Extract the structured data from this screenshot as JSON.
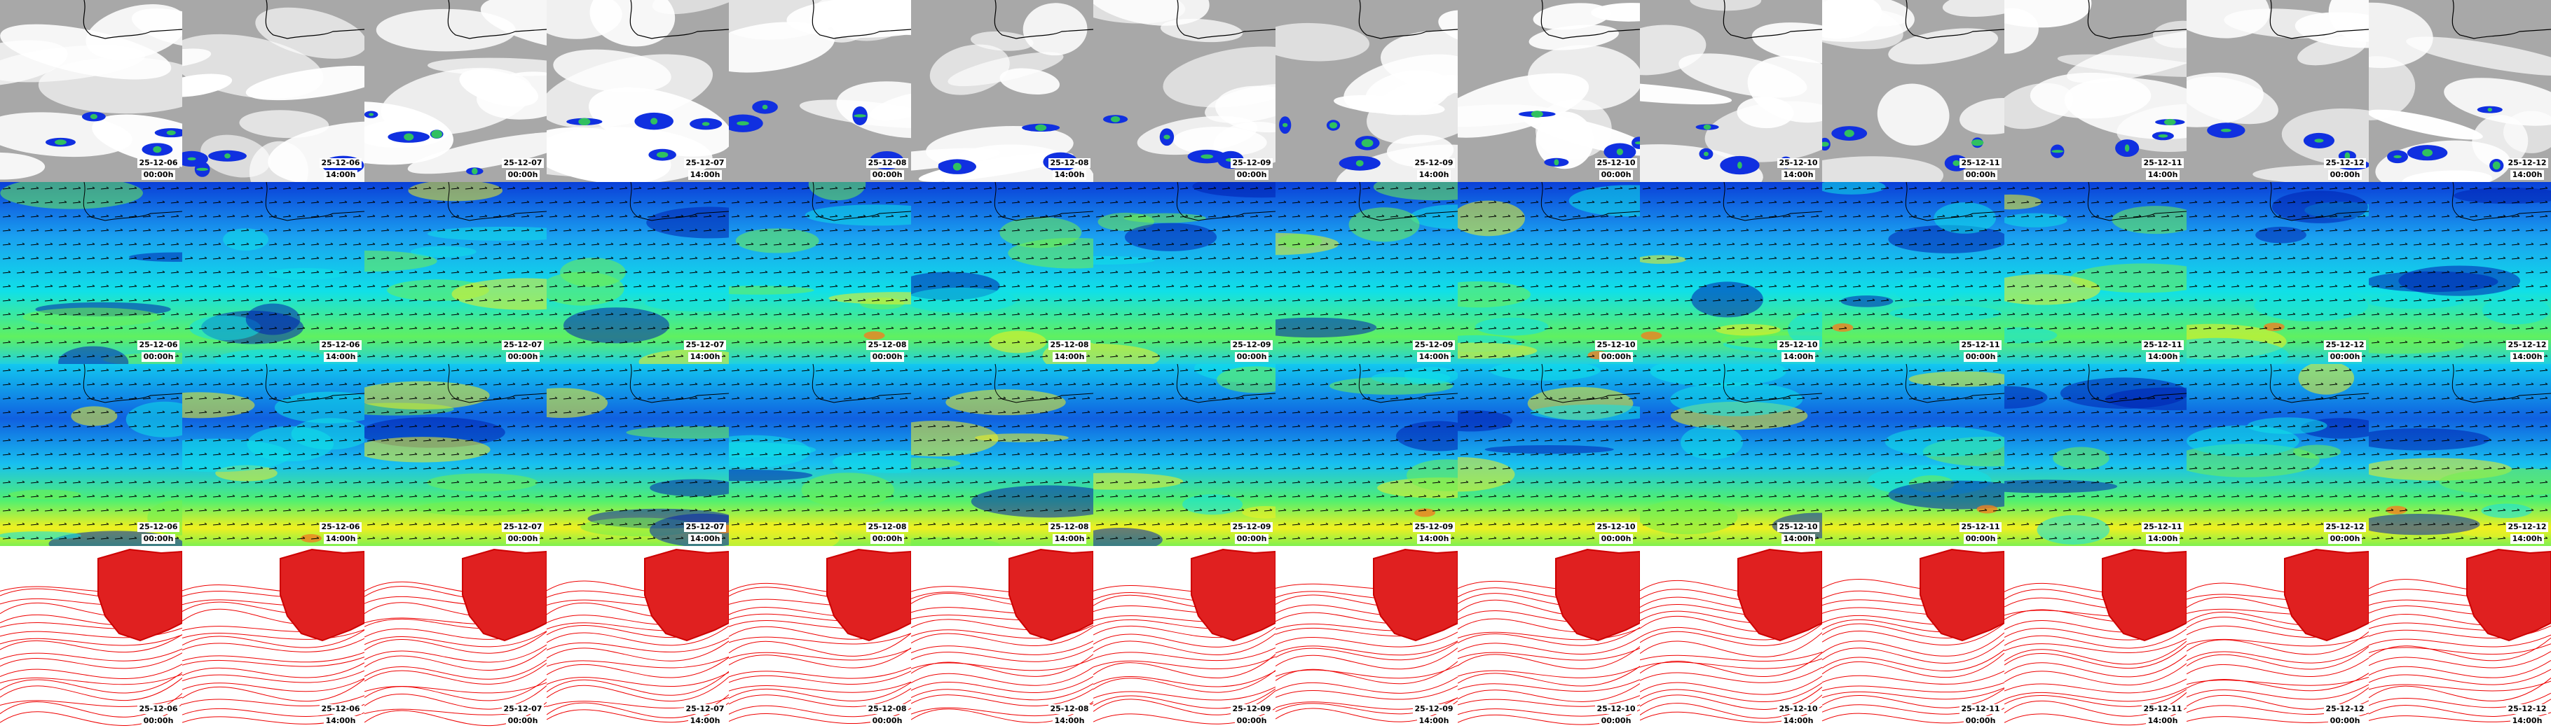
{
  "rows": [
    {
      "tiles": [
        {
          "date": "25-12-06",
          "time": "00:00h"
        },
        {
          "date": "25-12-06",
          "time": "14:00h"
        },
        {
          "date": "25-12-07",
          "time": "00:00h"
        },
        {
          "date": "25-12-07",
          "time": "14:00h"
        },
        {
          "date": "25-12-08",
          "time": "00:00h"
        },
        {
          "date": "25-12-08",
          "time": "14:00h"
        },
        {
          "date": "25-12-09",
          "time": "00:00h"
        },
        {
          "date": "25-12-09",
          "time": "14:00h"
        },
        {
          "date": "25-12-10",
          "time": "00:00h"
        },
        {
          "date": "25-12-10",
          "time": "14:00h"
        },
        {
          "date": "25-12-11",
          "time": "00:00h"
        },
        {
          "date": "25-12-11",
          "time": "14:00h"
        },
        {
          "date": "25-12-12",
          "time": "00:00h"
        },
        {
          "date": "25-12-12",
          "time": "14:00h"
        }
      ]
    },
    {
      "tiles": [
        {
          "date": "25-12-06",
          "time": "00:00h"
        },
        {
          "date": "25-12-06",
          "time": "14:00h"
        },
        {
          "date": "25-12-07",
          "time": "00:00h"
        },
        {
          "date": "25-12-07",
          "time": "14:00h"
        },
        {
          "date": "25-12-08",
          "time": "00:00h"
        },
        {
          "date": "25-12-08",
          "time": "14:00h"
        },
        {
          "date": "25-12-09",
          "time": "00:00h"
        },
        {
          "date": "25-12-09",
          "time": "14:00h"
        },
        {
          "date": "25-12-10",
          "time": "00:00h"
        },
        {
          "date": "25-12-10",
          "time": "14:00h"
        },
        {
          "date": "25-12-11",
          "time": "00:00h"
        },
        {
          "date": "25-12-11",
          "time": "14:00h"
        },
        {
          "date": "25-12-12",
          "time": "00:00h"
        },
        {
          "date": "25-12-12",
          "time": "14:00h"
        }
      ]
    },
    {
      "tiles": [
        {
          "date": "25-12-06",
          "time": "00:00h"
        },
        {
          "date": "25-12-06",
          "time": "14:00h"
        },
        {
          "date": "25-12-07",
          "time": "00:00h"
        },
        {
          "date": "25-12-07",
          "time": "14:00h"
        },
        {
          "date": "25-12-08",
          "time": "00:00h"
        },
        {
          "date": "25-12-08",
          "time": "14:00h"
        },
        {
          "date": "25-12-09",
          "time": "00:00h"
        },
        {
          "date": "25-12-09",
          "time": "14:00h"
        },
        {
          "date": "25-12-10",
          "time": "00:00h"
        },
        {
          "date": "25-12-10",
          "time": "14:00h"
        },
        {
          "date": "25-12-11",
          "time": "00:00h"
        },
        {
          "date": "25-12-11",
          "time": "14:00h"
        },
        {
          "date": "25-12-12",
          "time": "00:00h"
        },
        {
          "date": "25-12-12",
          "time": "14:00h"
        }
      ]
    },
    {
      "tiles": [
        {
          "date": "25-12-06",
          "time": "00:00h"
        },
        {
          "date": "25-12-06",
          "time": "14:00h"
        },
        {
          "date": "25-12-07",
          "time": "00:00h"
        },
        {
          "date": "25-12-07",
          "time": "14:00h"
        },
        {
          "date": "25-12-08",
          "time": "00:00h"
        },
        {
          "date": "25-12-08",
          "time": "14:00h"
        },
        {
          "date": "25-12-09",
          "time": "00:00h"
        },
        {
          "date": "25-12-09",
          "time": "14:00h"
        },
        {
          "date": "25-12-10",
          "time": "00:00h"
        },
        {
          "date": "25-12-10",
          "time": "14:00h"
        },
        {
          "date": "25-12-11",
          "time": "00:00h"
        },
        {
          "date": "25-12-11",
          "time": "14:00h"
        },
        {
          "date": "25-12-12",
          "time": "00:00h"
        },
        {
          "date": "25-12-12",
          "time": "14:00h"
        }
      ]
    }
  ]
}
